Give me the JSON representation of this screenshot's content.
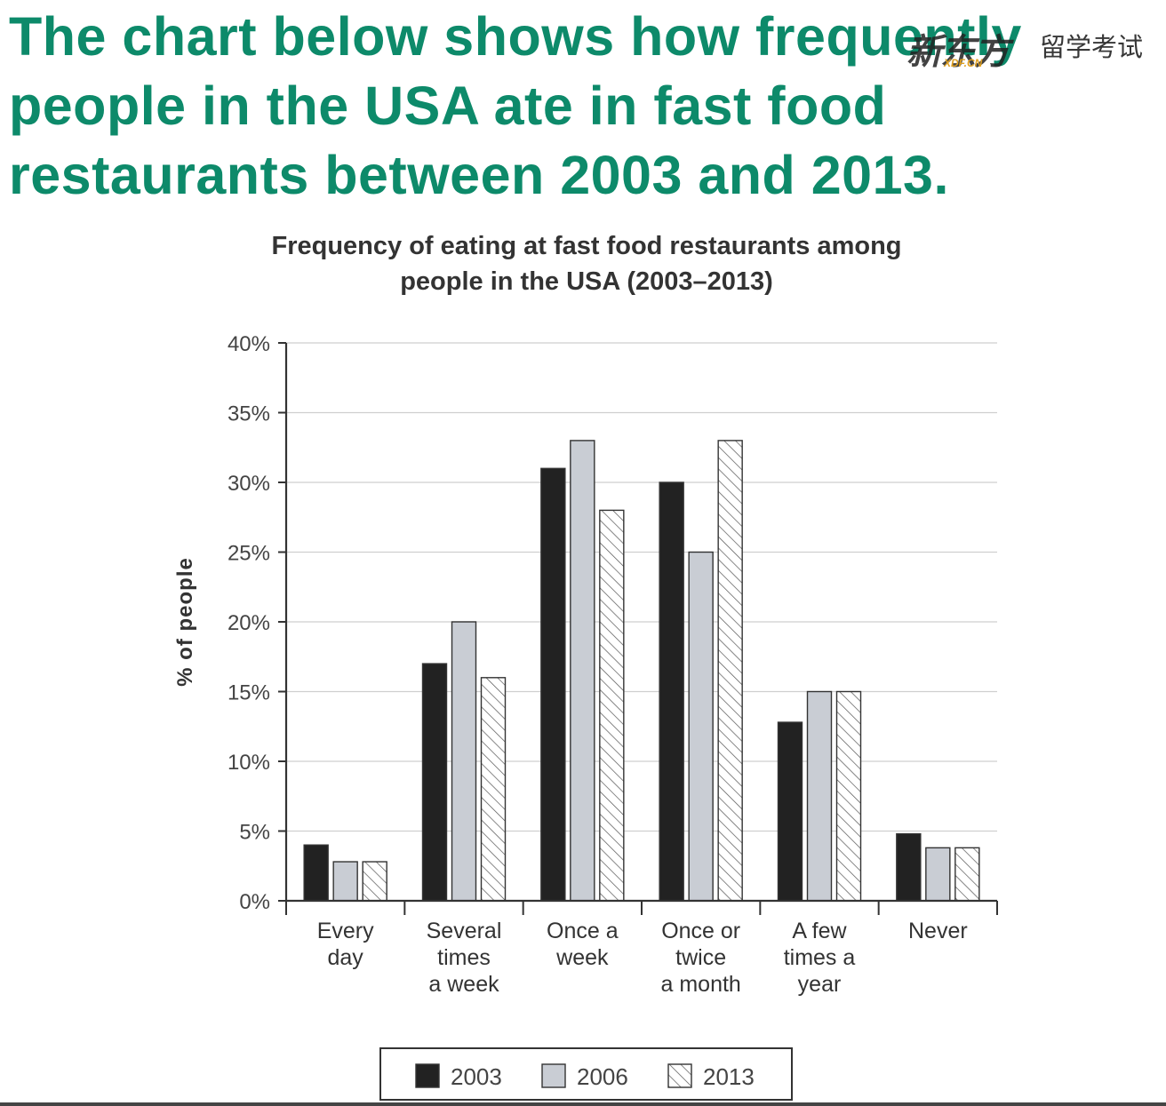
{
  "heading": {
    "lines": [
      "The chart below shows how frequently",
      "people in the USA ate in fast food",
      "restaurants between 2003 and 2013."
    ]
  },
  "watermark": {
    "logo_text": "新东方",
    "domain_text": "XDF.CN",
    "service_text": "留学考试"
  },
  "colors": {
    "heading": "#0d8a6a",
    "series_2003": "#222222",
    "series_2006": "#c9cdd4",
    "series_2013": "#ffffff",
    "gridline": "#cfcfcf",
    "axis": "#333333"
  },
  "chart_data": {
    "type": "bar",
    "title_lines": [
      "Frequency of eating at fast food restaurants among",
      "people in the USA (2003–2013)"
    ],
    "ylabel": "% of people",
    "xlabel": "",
    "ylim": [
      0,
      40
    ],
    "ytick_values": [
      0,
      5,
      10,
      15,
      20,
      25,
      30,
      35,
      40
    ],
    "ytick_suffix": "%",
    "grid": true,
    "legend_position": "bottom",
    "categories": [
      [
        "Every",
        "day"
      ],
      [
        "Several",
        "times",
        "a week"
      ],
      [
        "Once a",
        "week"
      ],
      [
        "Once or",
        "twice",
        "a month"
      ],
      [
        "A few",
        "times a",
        "year"
      ],
      [
        "Never"
      ]
    ],
    "series": [
      {
        "name": "2003",
        "pattern": "solid-dark",
        "values": [
          4,
          17,
          31,
          30,
          12.8,
          4.8
        ]
      },
      {
        "name": "2006",
        "pattern": "solid-light",
        "values": [
          2.8,
          20,
          33,
          25,
          15,
          3.8
        ]
      },
      {
        "name": "2013",
        "pattern": "hatched",
        "values": [
          2.8,
          16,
          28,
          33,
          15,
          3.8
        ]
      }
    ]
  }
}
